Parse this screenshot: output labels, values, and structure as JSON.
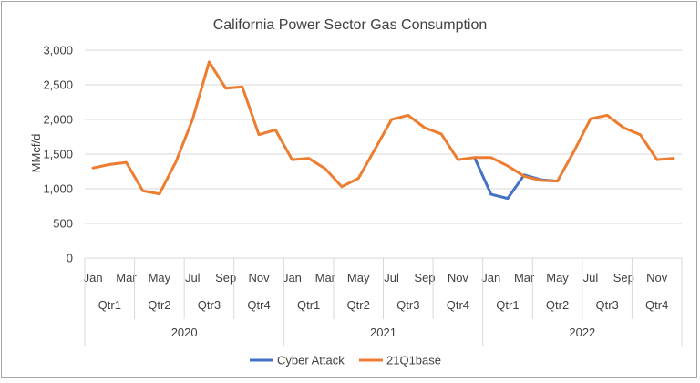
{
  "chart_data": {
    "type": "line",
    "title": "California Power Sector Gas Consumption",
    "ylabel": "MMcf/d",
    "xlabel": "",
    "ylim": [
      0,
      3000
    ],
    "yticks": [
      "0",
      "500",
      "1,000",
      "1,500",
      "2,000",
      "2,500",
      "3,000"
    ],
    "ytick_values": [
      0,
      500,
      1000,
      1500,
      2000,
      2500,
      3000
    ],
    "grid": "horizontal",
    "legend_position": "bottom",
    "month_labels": [
      "Jan",
      "",
      "Mar",
      "",
      "May",
      "",
      "Jul",
      "",
      "Sep",
      "",
      "Nov",
      "",
      "Jan",
      "",
      "Mar",
      "",
      "May",
      "",
      "Jul",
      "",
      "Sep",
      "",
      "Nov",
      "",
      "Jan",
      "",
      "Mar",
      "",
      "May",
      "",
      "Jul",
      "",
      "Sep",
      "",
      "Nov",
      ""
    ],
    "quarter_labels": [
      "Qtr1",
      "Qtr2",
      "Qtr3",
      "Qtr4",
      "Qtr1",
      "Qtr2",
      "Qtr3",
      "Qtr4",
      "Qtr1",
      "Qtr2",
      "Qtr3",
      "Qtr4"
    ],
    "year_labels": [
      "2020",
      "2021",
      "2022"
    ],
    "series": [
      {
        "name": "Cyber Attack",
        "color": "#4472c4",
        "start_index": 23,
        "values": [
          1450,
          920,
          860,
          1200,
          1130,
          1110
        ]
      },
      {
        "name": "21Q1base",
        "color": "#ed7d31",
        "start_index": 0,
        "values": [
          1300,
          1350,
          1380,
          970,
          925,
          1390,
          2000,
          2830,
          2450,
          2470,
          1780,
          1850,
          1420,
          1440,
          1290,
          1030,
          1150,
          1570,
          2000,
          2060,
          1880,
          1790,
          1420,
          1450,
          1450,
          1330,
          1180,
          1120,
          1110,
          1540,
          2010,
          2060,
          1880,
          1780,
          1420,
          1440
        ]
      }
    ]
  }
}
